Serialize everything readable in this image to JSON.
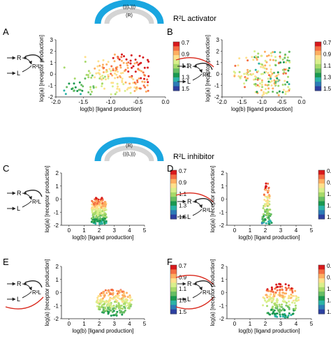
{
  "colors": {
    "arc_blue": "#1aa6e0",
    "arc_inner": "#d4d4d4",
    "feedback_red": "#d9281c",
    "axis": "#222222",
    "colormap": [
      "#d7191c",
      "#f46d43",
      "#fdae61",
      "#fee08b",
      "#d9ef8b",
      "#a6d96a",
      "#66bd63",
      "#1a9850",
      "#2bb3a6",
      "#2c7bb6",
      "#2c3fa0"
    ]
  },
  "headers": [
    {
      "arc_outer": "(((L)))",
      "arc_inner": "(R)",
      "label": "R²L activator"
    },
    {
      "arc_outer": "(R)",
      "arc_inner": "(((L)))",
      "label": "R²L inhibitor"
    }
  ],
  "panels": [
    {
      "letter": "A",
      "motif": "none"
    },
    {
      "letter": "B",
      "motif": "top"
    },
    {
      "letter": "C",
      "motif": "none"
    },
    {
      "letter": "D",
      "motif": "top"
    },
    {
      "letter": "E",
      "motif": "bottom"
    },
    {
      "letter": "F",
      "motif": "both"
    }
  ],
  "motif_labels": {
    "receptor": "R",
    "ligand": "L",
    "complex": "R²L"
  },
  "colorbar": {
    "ticks": [
      "0.7",
      "0.9",
      "1.1",
      "1.3",
      "1.5"
    ],
    "range": [
      0.7,
      1.5
    ]
  },
  "chart_data": [
    {
      "type": "scatter",
      "panel": "A",
      "xlabel": "log(b) [ligand production]",
      "ylabel": "log(a) [receptor production]",
      "xlim": [
        -2.0,
        0.0
      ],
      "ylim": [
        -2,
        3
      ],
      "xticks": [
        "-2.0",
        "-1.5",
        "-1.0",
        "-0.5",
        "0.0"
      ],
      "yticks": [
        "-2",
        "-1",
        "0",
        "1",
        "2",
        "3"
      ],
      "region": {
        "x_min": -1.85,
        "x_max": -0.3,
        "y_min": -1.8,
        "y_max": 1.8
      },
      "color_trend": "green at low b and in the lower half, orange-red at higher b near the top"
    },
    {
      "type": "scatter",
      "panel": "B",
      "xlabel": "log(b) [ligand production]",
      "ylabel": "log(a) [receptor production]",
      "xlim": [
        -2.0,
        0.0
      ],
      "ylim": [
        -2,
        3
      ],
      "xticks": [
        "-2.0",
        "-1.5",
        "-1.0",
        "-0.5",
        "0.0"
      ],
      "yticks": [
        "-2",
        "-1",
        "0",
        "1",
        "2",
        "3"
      ],
      "region": {
        "x_min": -1.7,
        "x_max": -0.3,
        "y_min": -1.9,
        "y_max": 2.0
      },
      "color_trend": "mostly orange-red and yellow, scattered green points"
    },
    {
      "type": "scatter",
      "panel": "C",
      "xlabel": "log(b) [ligand production]",
      "ylabel": "log(a) [receptor production]",
      "xlim": [
        -0.5,
        5
      ],
      "ylim": [
        -2,
        2
      ],
      "xticks": [
        "0",
        "1",
        "2",
        "3",
        "4",
        "5"
      ],
      "yticks": [
        "-2",
        "-1",
        "0",
        "1",
        "2"
      ],
      "region": {
        "x_min": 1.5,
        "x_max": 2.5,
        "y_min": -1.9,
        "y_max": 0.1
      },
      "color_trend": "red at the top, yellow in the middle, green below"
    },
    {
      "type": "scatter",
      "panel": "D",
      "xlabel": "log(b) [ligand production]",
      "ylabel": "log(a) [receptor production]",
      "xlim": [
        -0.5,
        5
      ],
      "ylim": [
        -2,
        2
      ],
      "xticks": [
        "0",
        "1",
        "2",
        "3",
        "4",
        "5"
      ],
      "yticks": [
        "-2",
        "-1",
        "0",
        "1",
        "2"
      ],
      "region": {
        "x_min": 1.75,
        "x_max": 2.45,
        "y_min": -1.9,
        "y_max": 1.3
      },
      "color_trend": "red and orange at the top, yellow and green below"
    },
    {
      "type": "scatter",
      "panel": "E",
      "xlabel": "log(b) [ligand production]",
      "ylabel": "log(a) [receptor production]",
      "xlim": [
        -0.5,
        5
      ],
      "ylim": [
        -2,
        2
      ],
      "xticks": [
        "0",
        "1",
        "2",
        "3",
        "4",
        "5"
      ],
      "yticks": [
        "-2",
        "-1",
        "0",
        "1",
        "2"
      ],
      "region": {
        "x_min": 1.8,
        "x_max": 4.2,
        "y_min": -1.8,
        "y_max": 0.3
      },
      "color_trend": "orange on the top edge, green and teal throughout"
    },
    {
      "type": "scatter",
      "panel": "F",
      "xlabel": "log(b) [ligand production]",
      "ylabel": "log(a) [receptor production]",
      "xlim": [
        -0.5,
        5
      ],
      "ylim": [
        -2,
        2
      ],
      "xticks": [
        "0",
        "1",
        "2",
        "3",
        "4",
        "5"
      ],
      "yticks": [
        "-2",
        "-1",
        "0",
        "1",
        "2"
      ],
      "region": {
        "x_min": 1.8,
        "x_max": 4.2,
        "y_min": -2.0,
        "y_max": 0.7
      },
      "color_trend": "orange-red on the top edge, yellow band, large green body"
    }
  ]
}
